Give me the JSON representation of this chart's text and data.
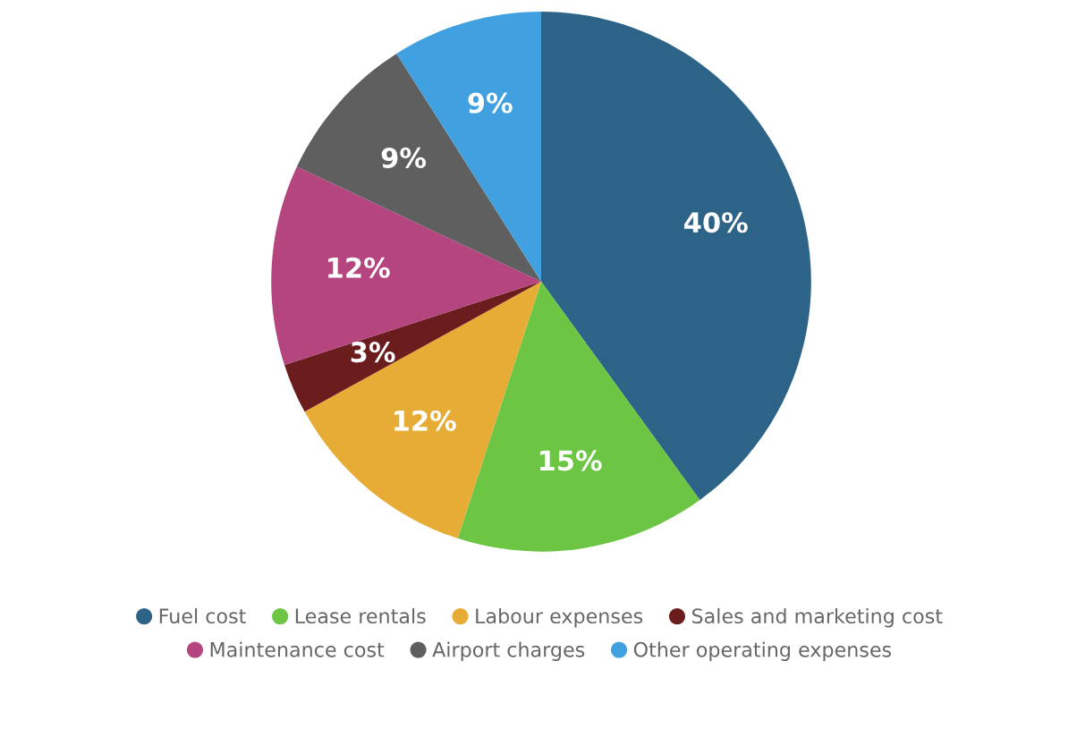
{
  "chart_data": {
    "type": "pie",
    "categories": [
      "Fuel cost",
      "Lease rentals",
      "Labour expenses",
      "Sales and marketing cost",
      "Maintenance cost",
      "Airport charges",
      "Other operating expenses"
    ],
    "values": [
      40,
      15,
      12,
      3,
      12,
      9,
      9
    ],
    "colors": [
      "#2e6388",
      "#6cc644",
      "#e6ac35",
      "#6b1d1d",
      "#b5457f",
      "#5f5f5f",
      "#41a0e0"
    ],
    "value_labels": [
      "40%",
      "15%",
      "12%",
      "3%",
      "12%",
      "9%",
      "9%"
    ],
    "legend": "bottom"
  }
}
